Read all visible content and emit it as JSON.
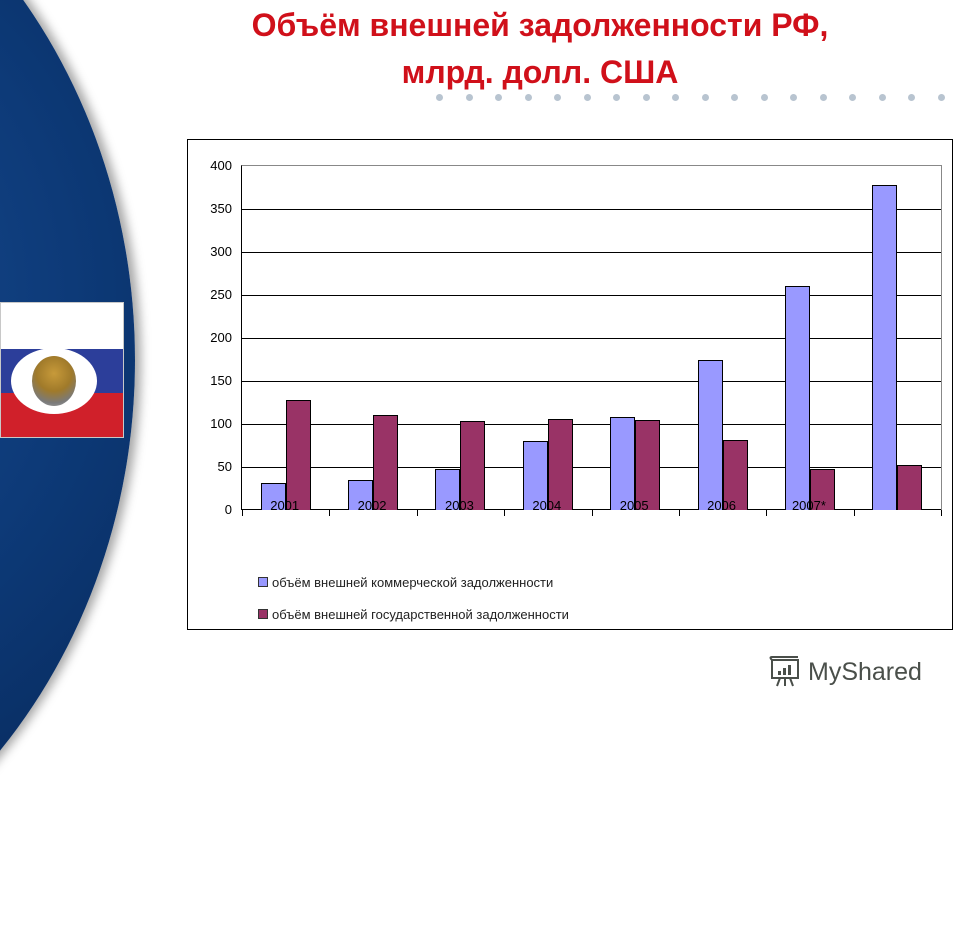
{
  "slide": {
    "title_line1": "Объём внешней задолженности РФ,",
    "title_line2": "млрд. долл. США",
    "title_color": "#d0101a",
    "brand": "MyShared",
    "brand_icon": "presentation-board-icon",
    "emblem_icon": "coat-of-arms-icon"
  },
  "chart_data": {
    "type": "bar",
    "title": "Объём внешней задолженности РФ, млрд. долл. США",
    "xlabel": "",
    "ylabel": "",
    "ylim": [
      0,
      400
    ],
    "yticks": [
      "400",
      "350",
      "300",
      "250",
      "200",
      "150",
      "100",
      "50",
      "0"
    ],
    "grid": true,
    "legend_position": "bottom",
    "categories": [
      "2001",
      "2002",
      "2003",
      "2004",
      "2005",
      "2006",
      "2007*",
      ""
    ],
    "series": [
      {
        "name": "объём внешней коммерческой задолженности",
        "color": "#9999ff",
        "values": [
          31,
          35,
          48,
          80,
          108,
          175,
          261,
          378
        ]
      },
      {
        "name": "объём внешней государственной задолженности",
        "color": "#993366",
        "values": [
          128,
          110,
          104,
          106,
          105,
          81,
          48,
          52
        ]
      }
    ]
  }
}
